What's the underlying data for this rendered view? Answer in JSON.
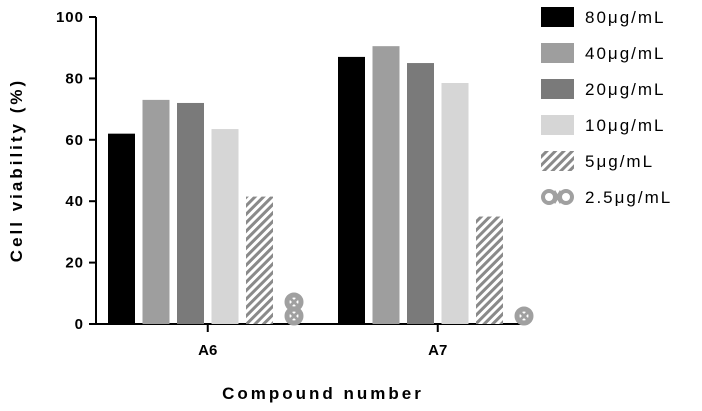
{
  "chart_data": {
    "type": "bar",
    "xlabel": "Compound number",
    "ylabel": "Cell viability  (%)",
    "ylim": [
      0,
      100
    ],
    "yticks": [
      "0",
      "20",
      "40",
      "60",
      "80",
      "100"
    ],
    "categories": [
      "A6",
      "A7"
    ],
    "series": [
      {
        "name": "80μg/mL",
        "values": [
          62,
          87
        ],
        "color": "#000000",
        "pattern": "solid"
      },
      {
        "name": "40μg/mL",
        "values": [
          73,
          90.5
        ],
        "color": "#9e9e9e",
        "pattern": "solid"
      },
      {
        "name": "20μg/mL",
        "values": [
          72,
          85
        ],
        "color": "#7a7a7a",
        "pattern": "solid"
      },
      {
        "name": "10μg/mL",
        "values": [
          63.5,
          78.5
        ],
        "color": "#d6d6d6",
        "pattern": "solid"
      },
      {
        "name": "5μg/mL",
        "values": [
          41.5,
          35
        ],
        "color": "#8a8a8a",
        "pattern": "hatch"
      },
      {
        "name": "2.5μg/mL",
        "values": [
          10,
          6
        ],
        "color": "#a0a0a0",
        "pattern": "cross"
      }
    ],
    "legend_position": "right",
    "grid": false
  }
}
